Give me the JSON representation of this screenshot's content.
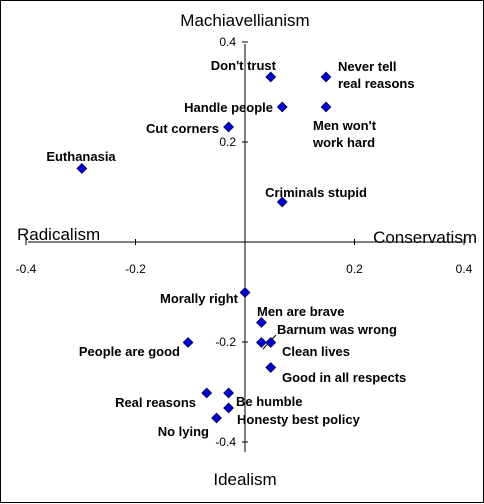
{
  "chart_data": {
    "type": "scatter",
    "title": "",
    "axis_names": {
      "top": "Machiavellianism",
      "bottom": "Idealism",
      "left": "Radicalism",
      "right": "Conservatism"
    },
    "xlim": [
      -0.4,
      0.4
    ],
    "ylim": [
      -0.4,
      0.4
    ],
    "x_ticks": [
      -0.4,
      -0.2,
      0.2,
      0.4
    ],
    "x_tick_labels": [
      "-0.4",
      "-0.2",
      "0.2",
      "0.4"
    ],
    "y_ticks": [
      0.4,
      0.2,
      -0.2,
      -0.4
    ],
    "y_tick_labels": [
      "0.4",
      "0.2",
      "-0.2",
      "-0.4"
    ],
    "grid": false,
    "marker_color": "#0000cc",
    "points": [
      {
        "label": "Don't trust",
        "x": 0.047,
        "y": 0.33
      },
      {
        "label": "Never tell real reasons",
        "x": 0.148,
        "y": 0.33
      },
      {
        "label": "Handle people",
        "x": 0.068,
        "y": 0.27
      },
      {
        "label": "Men won't work hard",
        "x": 0.148,
        "y": 0.27
      },
      {
        "label": "Cut corners",
        "x": -0.03,
        "y": 0.23
      },
      {
        "label": "Euthanasia",
        "x": -0.298,
        "y": 0.147
      },
      {
        "label": "Criminals stupid",
        "x": 0.068,
        "y": 0.08
      },
      {
        "label": "Morally right",
        "x": 0.0,
        "y": -0.101
      },
      {
        "label": "Men are brave",
        "x": 0.03,
        "y": -0.161
      },
      {
        "label": "Barnum was wrong",
        "x": 0.03,
        "y": -0.201
      },
      {
        "label": "Clean lives",
        "x": 0.047,
        "y": -0.201
      },
      {
        "label": "People are good",
        "x": -0.104,
        "y": -0.201
      },
      {
        "label": "Good in all respects",
        "x": 0.047,
        "y": -0.251
      },
      {
        "label": "Real reasons",
        "x": -0.07,
        "y": -0.302
      },
      {
        "label": "Be humble",
        "x": -0.03,
        "y": -0.302
      },
      {
        "label": "Honesty best policy",
        "x": -0.03,
        "y": -0.332
      },
      {
        "label": "No lying",
        "x": -0.052,
        "y": -0.352
      }
    ]
  }
}
